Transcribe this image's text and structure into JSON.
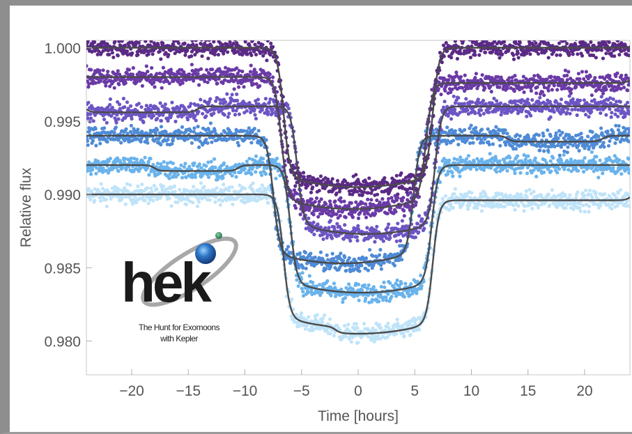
{
  "chart_data": {
    "type": "scatter",
    "xlabel": "Time [hours]",
    "ylabel": "Relative flux",
    "xlim": [
      -24,
      24
    ],
    "ylim": [
      0.9777,
      1.0005
    ],
    "xticks": [
      -20,
      -15,
      -10,
      -5,
      0,
      5,
      10,
      15,
      20
    ],
    "xtick_labels": [
      "−20",
      "−15",
      "−10",
      "−5",
      "0",
      "5",
      "10",
      "15",
      "20"
    ],
    "yticks": [
      1.0,
      0.995,
      0.99,
      0.985,
      0.98
    ],
    "ytick_labels": [
      "1.000",
      "0.995",
      "0.990",
      "0.985",
      "0.980"
    ],
    "grid": false,
    "series": [
      {
        "baseline": 1.0,
        "depth": 0.0095,
        "ingress": -6.6,
        "egress": 6.6,
        "moon_dip": 0.0,
        "moon_start": 0,
        "moon_end": 0,
        "color": "#5b2a86",
        "scatter": 0.00045
      },
      {
        "baseline": 0.998,
        "depth": 0.009,
        "ingress": -6.8,
        "egress": 6.0,
        "moon_dip": 0.0004,
        "moon_start": 6.0,
        "moon_end": 24,
        "color": "#6a3aa6",
        "scatter": 0.00045
      },
      {
        "baseline": 0.996,
        "depth": 0.0087,
        "ingress": -5.4,
        "egress": 6.8,
        "moon_dip": 0.0004,
        "moon_start": -24,
        "moon_end": -14.2,
        "color": "#6d55c4",
        "scatter": 0.00045
      },
      {
        "baseline": 0.994,
        "depth": 0.0087,
        "ingress": -7.5,
        "egress": 4.9,
        "moon_dip": 0.0004,
        "moon_start": 13.2,
        "moon_end": 21.6,
        "color": "#4f8bd6",
        "scatter": 0.00045
      },
      {
        "baseline": 0.992,
        "depth": 0.0087,
        "ingress": -6.0,
        "egress": 6.5,
        "moon_dip": 0.0004,
        "moon_start": -18.0,
        "moon_end": -10.6,
        "color": "#6ab3ec",
        "scatter": 0.00045
      },
      {
        "baseline": 0.99,
        "depth": 0.0091,
        "ingress": -6.6,
        "egress": 6.6,
        "moon_dip": 0.0004,
        "moon_start": -2.0,
        "moon_end": 24,
        "color": "#bfe3f9",
        "scatter": 0.00045
      }
    ]
  },
  "logo": {
    "wordmark": "hek",
    "tagline_line1": "The Hunt for Exomoons",
    "tagline_line2": "with Kepler"
  },
  "colors": {
    "model_line": "#4a4a4a",
    "frame": "#8e8e8e",
    "axis": "#b0b0b0"
  }
}
